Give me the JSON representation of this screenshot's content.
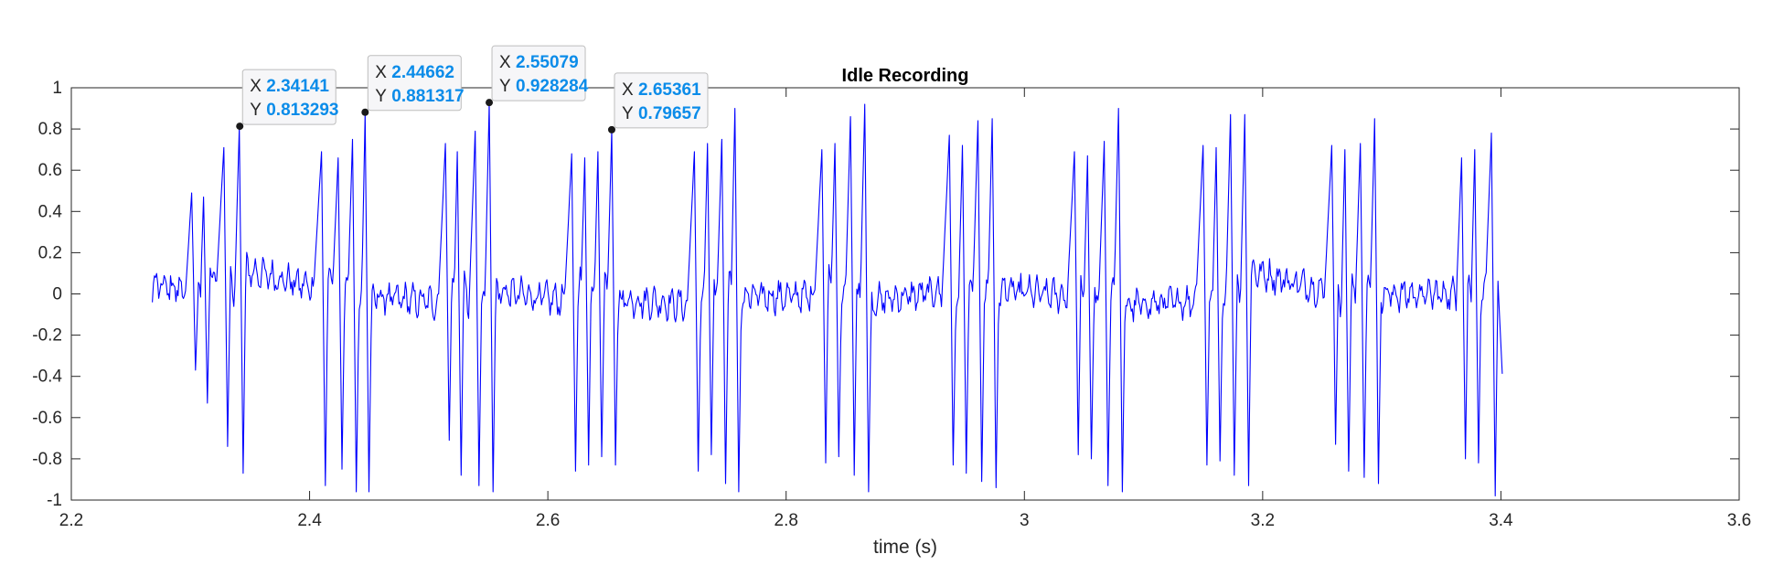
{
  "chart_data": {
    "type": "line",
    "title": "Idle Recording",
    "xlabel": "time (s)",
    "ylabel": "",
    "xlim": [
      2.2,
      3.6
    ],
    "ylim": [
      -1,
      1
    ],
    "xticks": [
      2.2,
      2.4,
      2.6,
      2.8,
      3.0,
      3.2,
      3.4,
      3.6
    ],
    "xtick_labels": [
      "2.2",
      "2.4",
      "2.6",
      "2.8",
      "3",
      "3.2",
      "3.4",
      "3.6"
    ],
    "yticks": [
      -1,
      -0.8,
      -0.6,
      -0.4,
      -0.2,
      0,
      0.2,
      0.4,
      0.6,
      0.8,
      1
    ],
    "ytick_labels": [
      "-1",
      "-0.8",
      "-0.6",
      "-0.4",
      "-0.2",
      "0",
      "0.2",
      "0.4",
      "0.6",
      "0.8",
      "1"
    ],
    "grid": false,
    "line_color": "#0000ff",
    "signal_range": [
      2.268,
      3.402
    ],
    "bursts": [
      {
        "start": 2.292,
        "peaks": [
          {
            "x": 2.301,
            "max": 0.49,
            "min": -0.37
          },
          {
            "x": 2.311,
            "max": 0.47,
            "min": -0.53
          },
          {
            "x": 2.328,
            "max": 0.71,
            "min": -0.74
          },
          {
            "x": 2.341,
            "max": 0.813,
            "min": -0.87
          }
        ]
      },
      {
        "start": 2.398,
        "peaks": [
          {
            "x": 2.41,
            "max": 0.69,
            "min": -0.93
          },
          {
            "x": 2.424,
            "max": 0.66,
            "min": -0.85
          },
          {
            "x": 2.436,
            "max": 0.75,
            "min": -0.96
          },
          {
            "x": 2.4466,
            "max": 0.881,
            "min": -0.96
          }
        ]
      },
      {
        "start": 2.503,
        "peaks": [
          {
            "x": 2.514,
            "max": 0.73,
            "min": -0.71
          },
          {
            "x": 2.524,
            "max": 0.69,
            "min": -0.88
          },
          {
            "x": 2.539,
            "max": 0.79,
            "min": -0.93
          },
          {
            "x": 2.5508,
            "max": 0.928,
            "min": -0.96
          }
        ]
      },
      {
        "start": 2.609,
        "peaks": [
          {
            "x": 2.62,
            "max": 0.68,
            "min": -0.86
          },
          {
            "x": 2.631,
            "max": 0.66,
            "min": -0.83
          },
          {
            "x": 2.642,
            "max": 0.69,
            "min": -0.79
          },
          {
            "x": 2.6536,
            "max": 0.797,
            "min": -0.83
          }
        ]
      },
      {
        "start": 2.712,
        "peaks": [
          {
            "x": 2.723,
            "max": 0.69,
            "min": -0.86
          },
          {
            "x": 2.734,
            "max": 0.73,
            "min": -0.78
          },
          {
            "x": 2.746,
            "max": 0.75,
            "min": -0.92
          },
          {
            "x": 2.757,
            "max": 0.9,
            "min": -0.96
          }
        ]
      },
      {
        "start": 2.819,
        "peaks": [
          {
            "x": 2.83,
            "max": 0.7,
            "min": -0.82
          },
          {
            "x": 2.841,
            "max": 0.73,
            "min": -0.79
          },
          {
            "x": 2.854,
            "max": 0.86,
            "min": -0.88
          },
          {
            "x": 2.866,
            "max": 0.92,
            "min": -0.96
          }
        ]
      },
      {
        "start": 2.926,
        "peaks": [
          {
            "x": 2.937,
            "max": 0.77,
            "min": -0.83
          },
          {
            "x": 2.948,
            "max": 0.72,
            "min": -0.87
          },
          {
            "x": 2.961,
            "max": 0.84,
            "min": -0.91
          },
          {
            "x": 2.973,
            "max": 0.85,
            "min": -0.94
          }
        ]
      },
      {
        "start": 3.031,
        "peaks": [
          {
            "x": 3.042,
            "max": 0.69,
            "min": -0.78
          },
          {
            "x": 3.053,
            "max": 0.67,
            "min": -0.8
          },
          {
            "x": 3.067,
            "max": 0.74,
            "min": -0.93
          },
          {
            "x": 3.079,
            "max": 0.9,
            "min": -0.96
          }
        ]
      },
      {
        "start": 3.139,
        "peaks": [
          {
            "x": 3.15,
            "max": 0.72,
            "min": -0.83
          },
          {
            "x": 3.161,
            "max": 0.71,
            "min": -0.81
          },
          {
            "x": 3.173,
            "max": 0.87,
            "min": -0.88
          },
          {
            "x": 3.185,
            "max": 0.87,
            "min": -0.93
          }
        ]
      },
      {
        "start": 3.247,
        "peaks": [
          {
            "x": 3.258,
            "max": 0.72,
            "min": -0.73
          },
          {
            "x": 3.269,
            "max": 0.7,
            "min": -0.86
          },
          {
            "x": 3.282,
            "max": 0.73,
            "min": -0.89
          },
          {
            "x": 3.294,
            "max": 0.85,
            "min": -0.92
          }
        ]
      },
      {
        "start": 3.359,
        "peaks": [
          {
            "x": 3.367,
            "max": 0.66,
            "min": -0.8
          },
          {
            "x": 3.378,
            "max": 0.7,
            "min": -0.82
          },
          {
            "x": 3.392,
            "max": 0.78,
            "min": -0.98
          }
        ]
      }
    ],
    "annotations": [
      {
        "x": "2.34141",
        "y": "0.813293",
        "px": 2.34141,
        "py": 0.813293
      },
      {
        "x": "2.44662",
        "y": "0.881317",
        "px": 2.44662,
        "py": 0.881317
      },
      {
        "x": "2.55079",
        "y": "0.928284",
        "px": 2.55079,
        "py": 0.928284
      },
      {
        "x": "2.65361",
        "y": "0.79657",
        "px": 2.65361,
        "py": 0.79657
      }
    ],
    "annotation_key_x": "X",
    "annotation_key_y": "Y"
  }
}
